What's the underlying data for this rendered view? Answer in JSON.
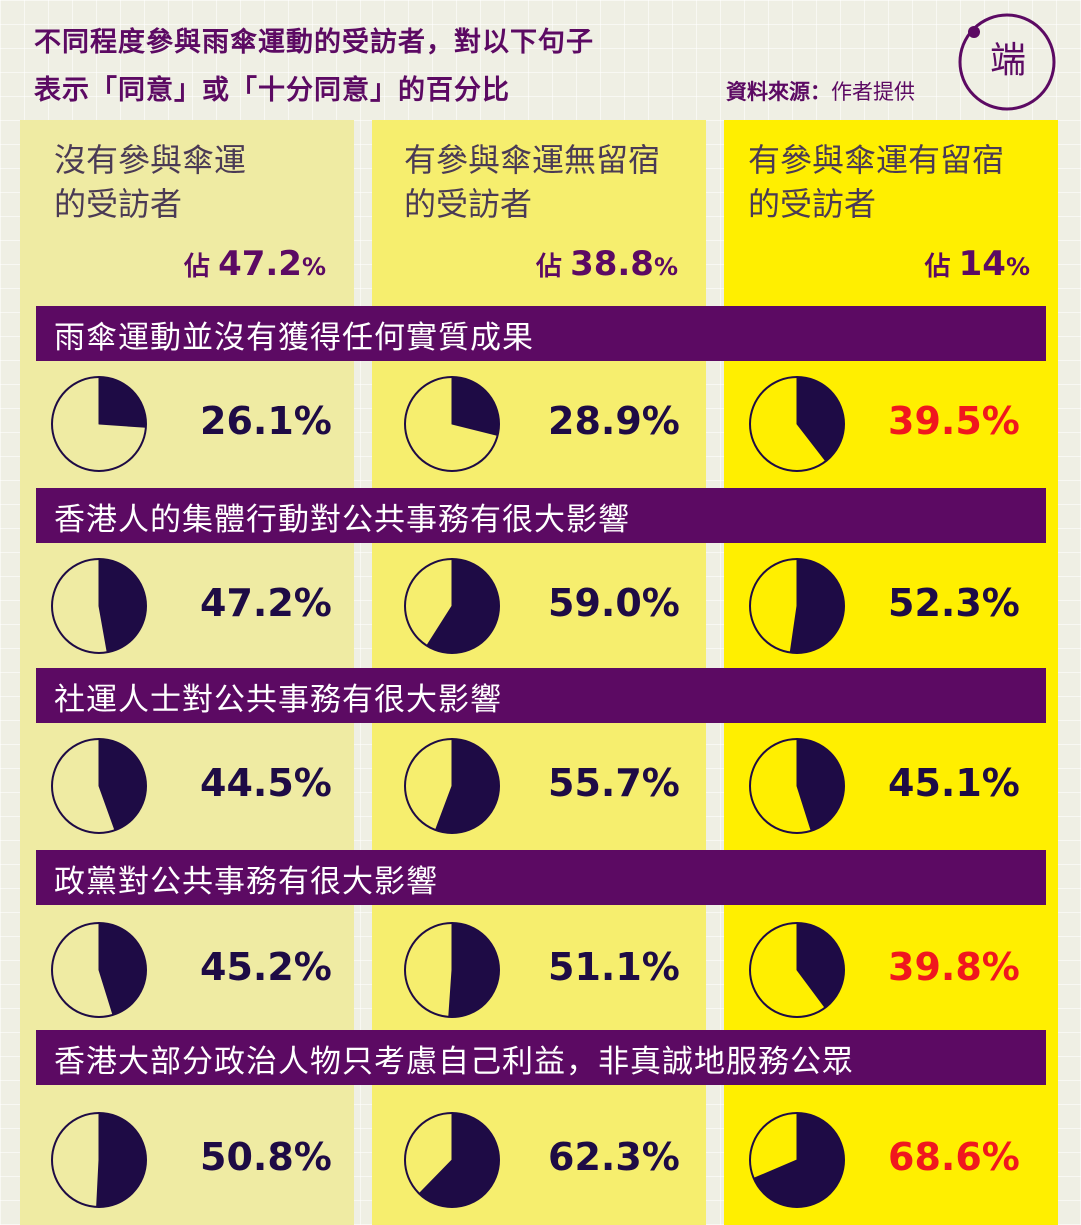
{
  "title": {
    "line1": "不同程度參與雨傘運動的受訪者，對以下句子",
    "line2": "表示「同意」或「十分同意」的百分比"
  },
  "source": {
    "label": "資料來源：",
    "value": "作者提供"
  },
  "logo": {
    "text": "端",
    "icon": "initium-logo-icon"
  },
  "colors": {
    "accent": "#5c0a63",
    "pie_fill": "#1e0b45",
    "highlight": "#f0171e",
    "col0_bg": "#efeba3",
    "col1_bg": "#f6ee6e",
    "col2_bg": "#ffef00"
  },
  "chart_data": {
    "type": "pie",
    "groups": [
      {
        "name": "沒有參與傘運\n的受訪者",
        "share_prefix": "佔",
        "share_value": "47.2",
        "share_unit": "%"
      },
      {
        "name": "有參與傘運無留宿\n的受訪者",
        "share_prefix": "佔",
        "share_value": "38.8",
        "share_unit": "%"
      },
      {
        "name": "有參與傘運有留宿\n的受訪者",
        "share_prefix": "佔",
        "share_value": "14",
        "share_unit": "%"
      }
    ],
    "statements": [
      {
        "text": "雨傘運動並沒有獲得任何實質成果",
        "values": [
          26.1,
          28.9,
          39.5
        ],
        "highlight": [
          false,
          false,
          true
        ]
      },
      {
        "text": "香港人的集體行動對公共事務有很大影響",
        "values": [
          47.2,
          59.0,
          52.3
        ],
        "highlight": [
          false,
          false,
          false
        ]
      },
      {
        "text": "社運人士對公共事務有很大影響",
        "values": [
          44.5,
          55.7,
          45.1
        ],
        "highlight": [
          false,
          false,
          false
        ]
      },
      {
        "text": "政黨對公共事務有很大影響",
        "values": [
          45.2,
          51.1,
          39.8
        ],
        "highlight": [
          false,
          false,
          true
        ]
      },
      {
        "text": "香港大部分政治人物只考慮自己利益，非真誠地服務公眾",
        "values": [
          50.8,
          62.3,
          68.6
        ],
        "highlight": [
          false,
          false,
          true
        ]
      }
    ],
    "value_unit": "%"
  }
}
